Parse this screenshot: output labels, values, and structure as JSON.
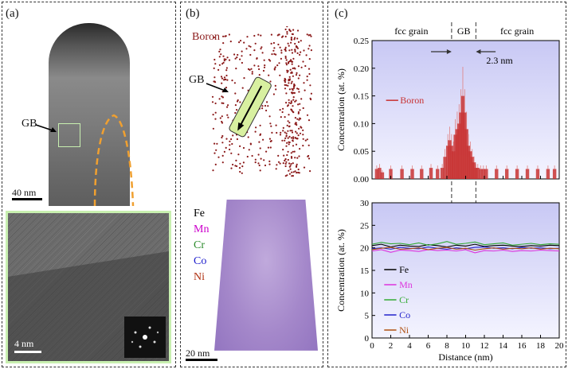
{
  "panel_a": {
    "label": "(a)",
    "gb_label": "GB",
    "scale_top": "40 nm",
    "scale_bottom": "4 nm"
  },
  "panel_b": {
    "label": "(b)",
    "boron_label": "Boron",
    "gb_label": "GB",
    "legend": [
      {
        "name": "Fe",
        "color": "#000000"
      },
      {
        "name": "Mn",
        "color": "#cc00cc"
      },
      {
        "name": "Cr",
        "color": "#2a8a2a"
      },
      {
        "name": "Co",
        "color": "#1a1acc"
      },
      {
        "name": "Ni",
        "color": "#b03010"
      }
    ],
    "scale": "20 nm"
  },
  "panel_c": {
    "label": "(c)",
    "annot_left": "fcc grain",
    "annot_gb": "GB",
    "annot_right": "fcc grain",
    "annot_width": "2.3 nm"
  },
  "chart_data": [
    {
      "type": "bar",
      "ylabel": "Concentration (at. %)",
      "xlim": [
        0,
        20
      ],
      "ylim": [
        0,
        0.25
      ],
      "yticks": [
        "0.00",
        "0.05",
        "0.10",
        "0.15",
        "0.20",
        "0.25"
      ],
      "series": [
        {
          "name": "Boron",
          "color": "#c83232"
        }
      ],
      "x": [
        0.5,
        0.8,
        1.1,
        2.0,
        3.2,
        4.3,
        5.3,
        6.3,
        7.0,
        7.5,
        7.8,
        8.1,
        8.3,
        8.5,
        8.7,
        8.9,
        9.1,
        9.3,
        9.5,
        9.7,
        9.9,
        10.1,
        10.3,
        10.5,
        10.7,
        10.9,
        11.1,
        11.3,
        11.6,
        11.9,
        12.2,
        13.3,
        14.4,
        15.5,
        16.6,
        17.7,
        18.8,
        19.5
      ],
      "values": [
        0.018,
        0.02,
        0.012,
        0.018,
        0.018,
        0.018,
        0.018,
        0.02,
        0.018,
        0.02,
        0.04,
        0.06,
        0.07,
        0.06,
        0.05,
        0.08,
        0.09,
        0.1,
        0.12,
        0.15,
        0.12,
        0.09,
        0.06,
        0.05,
        0.04,
        0.03,
        0.02,
        0.02,
        0.018,
        0.018,
        0.018,
        0.018,
        0.018,
        0.018,
        0.018,
        0.018,
        0.018,
        0.018
      ]
    },
    {
      "type": "line",
      "xlabel": "Distance (nm)",
      "ylabel": "Concentration (at. %)",
      "xlim": [
        0,
        20
      ],
      "ylim": [
        0,
        30
      ],
      "xticks": [
        "0",
        "2",
        "4",
        "6",
        "8",
        "10",
        "12",
        "14",
        "16",
        "18",
        "20"
      ],
      "yticks": [
        "0",
        "5",
        "10",
        "15",
        "20",
        "25",
        "30"
      ],
      "x": [
        0,
        1,
        2,
        3,
        4,
        5,
        6,
        7,
        8,
        9,
        10,
        11,
        12,
        13,
        14,
        15,
        16,
        17,
        18,
        19,
        20
      ],
      "series": [
        {
          "name": "Fe",
          "color": "#000000",
          "values": [
            20.5,
            20.8,
            20.2,
            20.6,
            20.4,
            20.3,
            20.7,
            20.5,
            20.2,
            20.6,
            20.4,
            20.8,
            20.3,
            20.5,
            20.6,
            20.4,
            20.3,
            20.5,
            20.4,
            20.6,
            20.5
          ]
        },
        {
          "name": "Mn",
          "color": "#dd33dd",
          "values": [
            19.3,
            19.6,
            19.0,
            19.5,
            19.4,
            19.2,
            19.6,
            19.4,
            19.5,
            19.3,
            19.6,
            18.9,
            19.4,
            19.3,
            19.5,
            19.2,
            19.4,
            19.3,
            19.5,
            19.4,
            19.3
          ]
        },
        {
          "name": "Cr",
          "color": "#33aa33",
          "values": [
            20.8,
            21.2,
            20.9,
            21.0,
            20.7,
            21.1,
            20.6,
            20.9,
            21.4,
            20.8,
            21.0,
            21.3,
            20.7,
            20.9,
            21.1,
            20.6,
            20.8,
            21.0,
            20.7,
            20.9,
            20.8
          ]
        },
        {
          "name": "Co",
          "color": "#2222cc",
          "values": [
            19.8,
            20.0,
            19.7,
            20.1,
            19.9,
            19.8,
            20.2,
            19.9,
            19.7,
            20.0,
            19.8,
            20.1,
            20.2,
            19.9,
            20.0,
            19.8,
            20.1,
            19.9,
            20.0,
            19.8,
            19.9
          ]
        },
        {
          "name": "Ni",
          "color": "#b05010",
          "values": [
            19.6,
            19.9,
            20.1,
            19.7,
            19.8,
            20.0,
            19.6,
            19.9,
            20.1,
            19.7,
            19.9,
            19.5,
            19.8,
            20.0,
            19.7,
            19.9,
            19.8,
            20.0,
            19.7,
            19.9,
            19.8
          ]
        }
      ]
    }
  ]
}
